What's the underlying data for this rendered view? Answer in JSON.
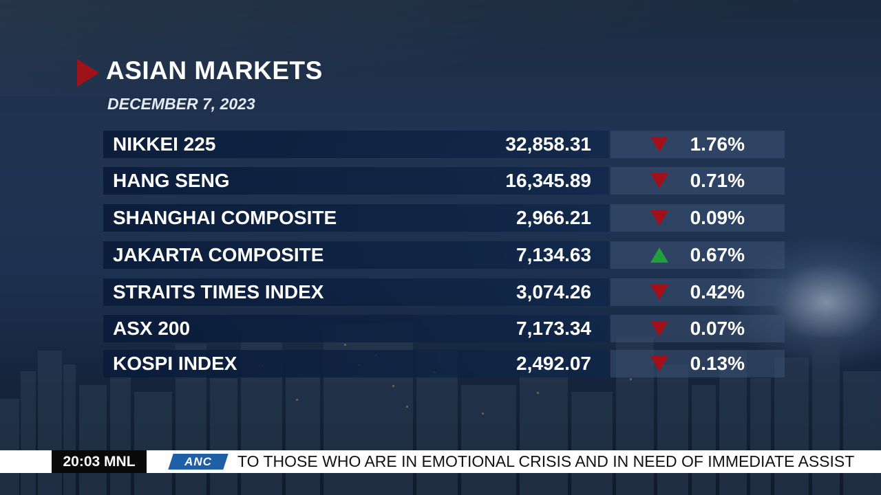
{
  "header": {
    "title": "ASIAN MARKETS",
    "date": "DECEMBER 7, 2023"
  },
  "markets": [
    {
      "name": "NIKKEI 225",
      "value": "32,858.31",
      "direction": "down",
      "change": "1.76%"
    },
    {
      "name": "HANG SENG",
      "value": "16,345.89",
      "direction": "down",
      "change": "0.71%"
    },
    {
      "name": "SHANGHAI COMPOSITE",
      "value": "2,966.21",
      "direction": "down",
      "change": "0.09%"
    },
    {
      "name": "JAKARTA COMPOSITE",
      "value": "7,134.63",
      "direction": "up",
      "change": "0.67%"
    },
    {
      "name": "STRAITS TIMES INDEX",
      "value": "3,074.26",
      "direction": "down",
      "change": "0.42%"
    },
    {
      "name": "ASX 200",
      "value": "7,173.34",
      "direction": "down",
      "change": "0.07%"
    },
    {
      "name": "KOSPI INDEX",
      "value": "2,492.07",
      "direction": "down",
      "change": "0.13%"
    }
  ],
  "colors": {
    "down": "#a3101a",
    "up": "#1fa03a",
    "accent_marker": "#a0121a",
    "logo": "#1f5fa8"
  },
  "ticker": {
    "time": "20:03",
    "zone": "MNL",
    "clock": "20:03  MNL",
    "logo": "ANC",
    "text": "TO THOSE WHO ARE IN EMOTIONAL CRISIS AND IN NEED OF IMMEDIATE ASSIST"
  }
}
